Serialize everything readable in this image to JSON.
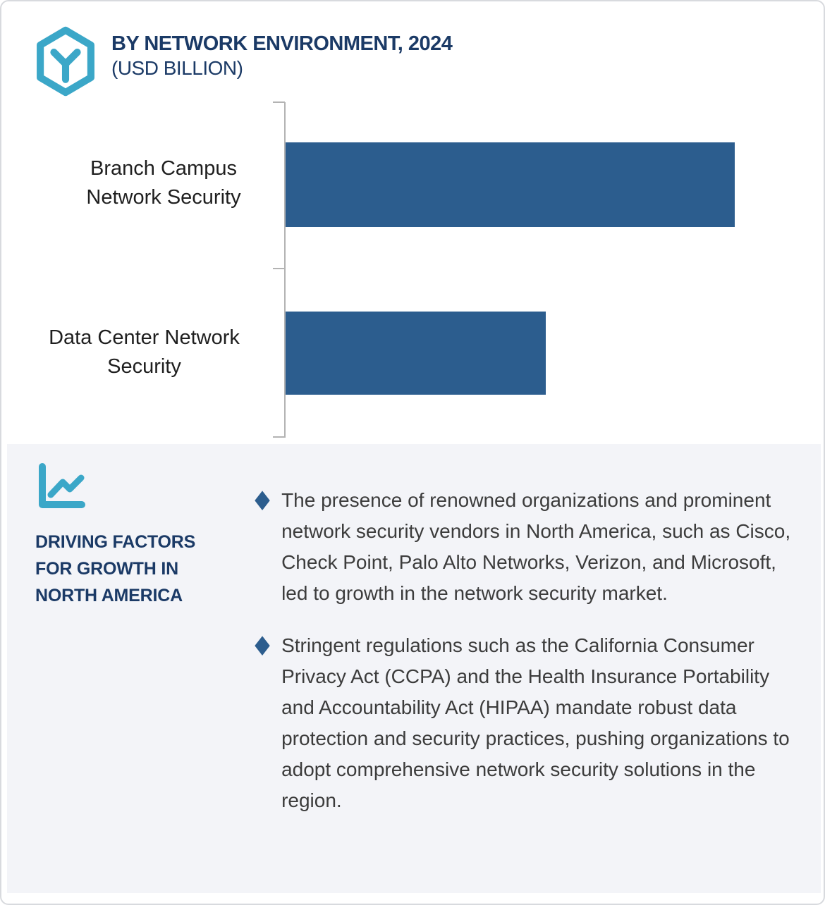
{
  "header": {
    "logo_name": "hexagon-y-logo",
    "title": "BY NETWORK ENVIRONMENT, 2024",
    "subtitle": "(USD BILLION)"
  },
  "chart_data": {
    "type": "bar",
    "orientation": "horizontal",
    "title": "BY NETWORK ENVIRONMENT, 2024",
    "subtitle": "(USD BILLION)",
    "categories": [
      "Branch Campus Network Security",
      "Data Center Network Security"
    ],
    "series": [
      {
        "name": "2024",
        "values_pct_of_max": [
          100,
          58
        ]
      }
    ],
    "value_axis_labels_shown": false,
    "data_labels_shown": false,
    "gridlines": false,
    "bar_color": "#2C5D8E",
    "axis_color": "#B3B3B3"
  },
  "driving_factors": {
    "icon_name": "line-chart-icon",
    "heading": "DRIVING FACTORS FOR GROWTH IN NORTH AMERICA",
    "bullet_marker": "♦",
    "bullets": [
      {
        "text": "The presence of renowned organizations and prominent network security vendors in North America, such as Cisco, Check Point, Palo Alto Networks, Verizon, and Microsoft, led to growth in the network security market."
      },
      {
        "text": "Stringent regulations such as the California Consumer Privacy Act (CCPA) and the Health Insurance Portability and Accountability Act (HIPAA) mandate robust data protection and security practices, pushing organizations to adopt comprehensive network security solutions in the region."
      }
    ]
  },
  "colors": {
    "bar_blue": "#2C5D8E",
    "accent_teal": "#3BA7C8",
    "navy_text": "#1B3A66",
    "panel_background": "#F3F4F8",
    "body_text": "#3C3C3C",
    "border": "#D8DADE"
  }
}
